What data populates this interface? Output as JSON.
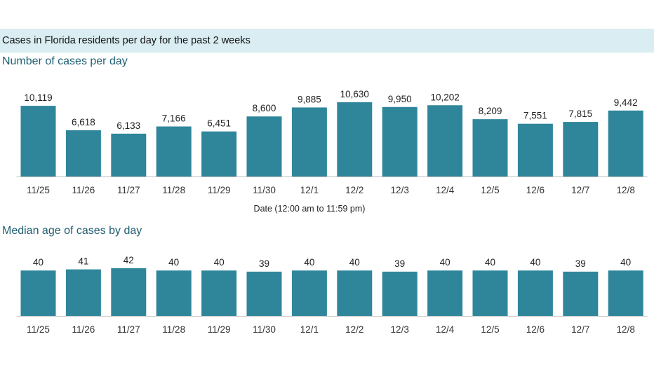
{
  "header": {
    "title": "Cases in Florida residents per day for the past 2 weeks"
  },
  "colors": {
    "bar": "#2f869b",
    "header_band": "#d9edf2",
    "section_title": "#1f5f72"
  },
  "chart_data": [
    {
      "type": "bar",
      "title": "Number of cases per day",
      "xlabel": "Date (12:00 am to 11:59 pm)",
      "ylabel": "",
      "categories": [
        "11/25",
        "11/26",
        "11/27",
        "11/28",
        "11/29",
        "11/30",
        "12/1",
        "12/2",
        "12/3",
        "12/4",
        "12/5",
        "12/6",
        "12/7",
        "12/8"
      ],
      "values": [
        10119,
        6618,
        6133,
        7166,
        6451,
        8600,
        9885,
        10630,
        9950,
        10202,
        8209,
        7551,
        7815,
        9442
      ],
      "value_labels": [
        "10,119",
        "6,618",
        "6,133",
        "7,166",
        "6,451",
        "8,600",
        "9,885",
        "10,630",
        "9,950",
        "10,202",
        "8,209",
        "7,551",
        "7,815",
        "9,442"
      ],
      "ylim": [
        0,
        10630
      ],
      "grid": false
    },
    {
      "type": "bar",
      "title": "Median age of cases by day",
      "xlabel": "",
      "ylabel": "",
      "categories": [
        "11/25",
        "11/26",
        "11/27",
        "11/28",
        "11/29",
        "11/30",
        "12/1",
        "12/2",
        "12/3",
        "12/4",
        "12/5",
        "12/6",
        "12/7",
        "12/8"
      ],
      "values": [
        40,
        41,
        42,
        40,
        40,
        39,
        40,
        40,
        39,
        40,
        40,
        40,
        39,
        40
      ],
      "value_labels": [
        "40",
        "41",
        "42",
        "40",
        "40",
        "39",
        "40",
        "40",
        "39",
        "40",
        "40",
        "40",
        "39",
        "40"
      ],
      "ylim": [
        0,
        42
      ],
      "grid": false
    }
  ]
}
